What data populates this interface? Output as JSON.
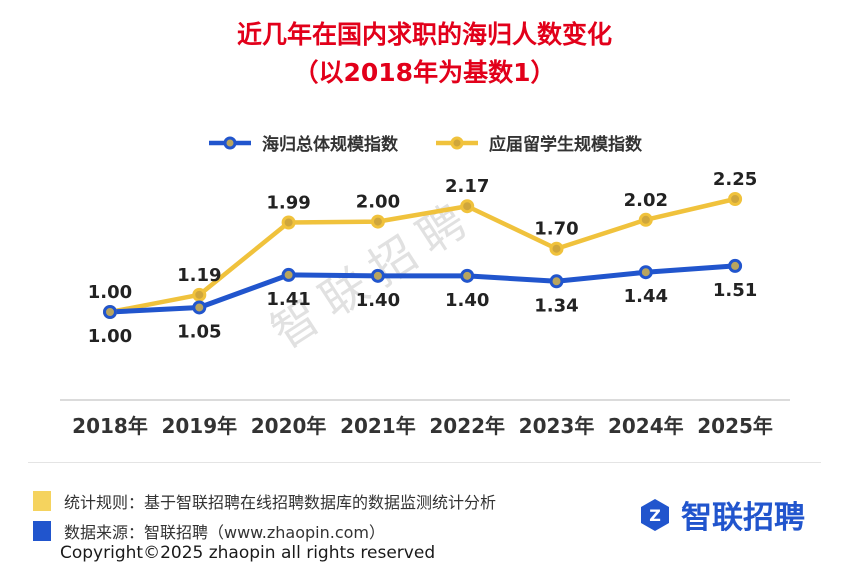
{
  "title": {
    "line1": "近几年在国内求职的海归人数变化",
    "line2": "（以2018年为基数1）"
  },
  "chart_data": {
    "type": "line",
    "categories": [
      "2018年",
      "2019年",
      "2020年",
      "2021年",
      "2022年",
      "2023年",
      "2024年",
      "2025年"
    ],
    "series": [
      {
        "name": "海归总体规模指数",
        "color": "#2155cd",
        "marker_fill": "#b9a55e",
        "label_position": "below",
        "values": [
          1.0,
          1.05,
          1.41,
          1.4,
          1.4,
          1.34,
          1.44,
          1.51
        ]
      },
      {
        "name": "应届留学生规模指数",
        "color": "#f0c23c",
        "marker_fill": "#cfa63c",
        "label_position": "above",
        "values": [
          1.0,
          1.19,
          1.99,
          2.0,
          2.17,
          1.7,
          2.02,
          2.25
        ]
      }
    ],
    "ylim": [
      0.9,
      2.45
    ],
    "grid": false,
    "legend_position": "top",
    "watermark": "智联招聘"
  },
  "footer": {
    "notes": [
      {
        "color": "#f5d35e",
        "text": "统计规则：基于智联招聘在线招聘数据库的数据监测统计分析"
      },
      {
        "color": "#2155cd",
        "text": "数据来源：智联招聘（www.zhaopin.com）"
      }
    ],
    "logo_text": "智联招聘",
    "copyright": "Copyright©2025 zhaopin all rights reserved"
  },
  "colors": {
    "title_red": "#e2001a",
    "brand_blue": "#2155cd",
    "brand_yellow": "#f0c23c",
    "axis_line": "#cfcfcf",
    "text": "#333333"
  }
}
